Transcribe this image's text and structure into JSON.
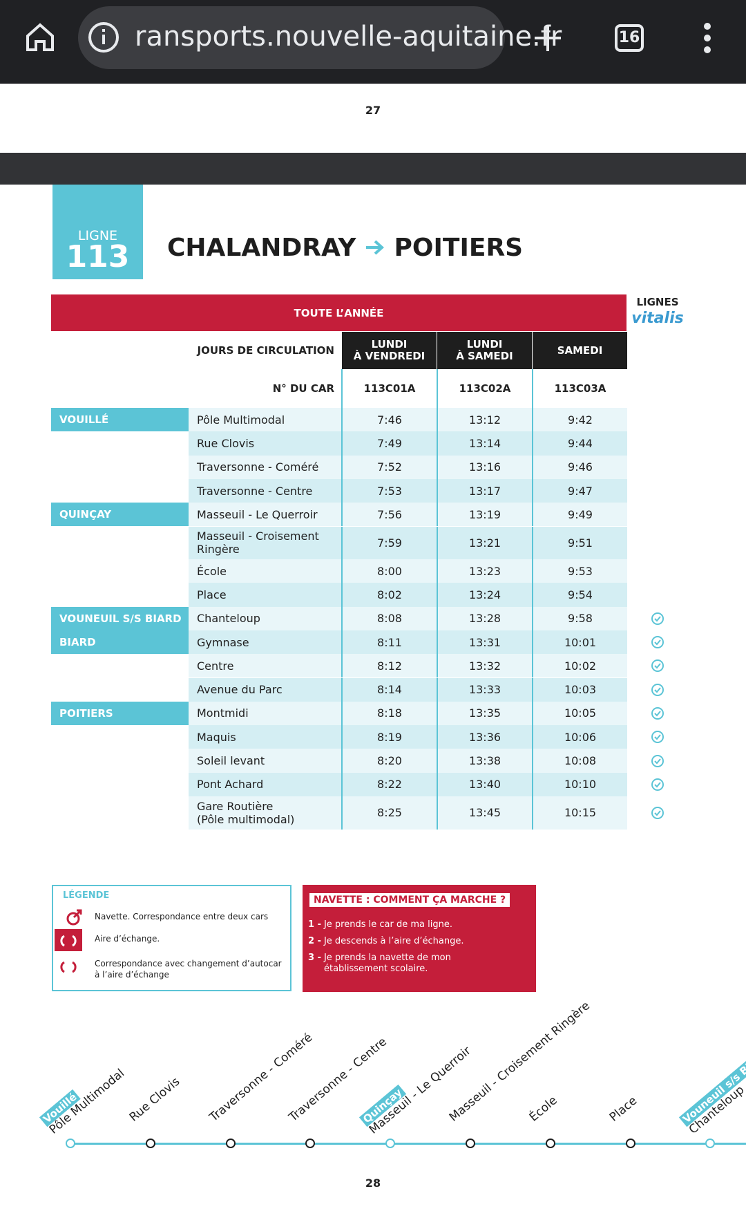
{
  "browser": {
    "url": "ransports.nouvelle-aquitaine.fr",
    "tab_count": "16"
  },
  "page_top": "27",
  "line": {
    "label": "LIGNE",
    "number": "113"
  },
  "title": {
    "from": "CHALANDRAY",
    "to": "POITIERS"
  },
  "brand": {
    "label": "LIGNES",
    "name": "vitalis"
  },
  "table": {
    "period": "TOUTE L’ANNÉE",
    "days_label": "JOURS DE CIRCULATION",
    "car_label": "N° DU CAR",
    "columns": [
      {
        "days": [
          "LUNDI",
          "À VENDREDI"
        ],
        "car": "113C01A"
      },
      {
        "days": [
          "LUNDI",
          "À SAMEDI"
        ],
        "car": "113C02A"
      },
      {
        "days": [
          "SAMEDI"
        ],
        "car": "113C03A"
      }
    ],
    "rows": [
      {
        "town": "VOUILLÉ",
        "stop": [
          "Pôle Multimodal"
        ],
        "times": [
          "7:46",
          "13:12",
          "9:42"
        ],
        "vitalis": false
      },
      {
        "stop": [
          "Rue Clovis"
        ],
        "times": [
          "7:49",
          "13:14",
          "9:44"
        ],
        "vitalis": false
      },
      {
        "stop": [
          "Traversonne - Coméré"
        ],
        "times": [
          "7:52",
          "13:16",
          "9:46"
        ],
        "vitalis": false
      },
      {
        "stop": [
          "Traversonne - Centre"
        ],
        "times": [
          "7:53",
          "13:17",
          "9:47"
        ],
        "vitalis": false
      },
      {
        "town": "QUINÇAY",
        "stop": [
          "Masseuil - Le Querroir"
        ],
        "times": [
          "7:56",
          "13:19",
          "9:49"
        ],
        "vitalis": false
      },
      {
        "stop": [
          "Masseuil - Croisement",
          "Ringère"
        ],
        "times": [
          "7:59",
          "13:21",
          "9:51"
        ],
        "vitalis": false
      },
      {
        "stop": [
          "École"
        ],
        "times": [
          "8:00",
          "13:23",
          "9:53"
        ],
        "vitalis": false
      },
      {
        "stop": [
          "Place"
        ],
        "times": [
          "8:02",
          "13:24",
          "9:54"
        ],
        "vitalis": false
      },
      {
        "town": "VOUNEUIL S/S BIARD",
        "stop": [
          "Chanteloup"
        ],
        "times": [
          "8:08",
          "13:28",
          "9:58"
        ],
        "vitalis": true
      },
      {
        "town": "BIARD",
        "stop": [
          "Gymnase"
        ],
        "times": [
          "8:11",
          "13:31",
          "10:01"
        ],
        "vitalis": true
      },
      {
        "stop": [
          "Centre"
        ],
        "times": [
          "8:12",
          "13:32",
          "10:02"
        ],
        "vitalis": true
      },
      {
        "stop": [
          "Avenue du Parc"
        ],
        "times": [
          "8:14",
          "13:33",
          "10:03"
        ],
        "vitalis": true
      },
      {
        "town": "POITIERS",
        "stop": [
          "Montmidi"
        ],
        "times": [
          "8:18",
          "13:35",
          "10:05"
        ],
        "vitalis": true
      },
      {
        "stop": [
          "Maquis"
        ],
        "times": [
          "8:19",
          "13:36",
          "10:06"
        ],
        "vitalis": true
      },
      {
        "stop": [
          "Soleil levant"
        ],
        "times": [
          "8:20",
          "13:38",
          "10:08"
        ],
        "vitalis": true
      },
      {
        "stop": [
          "Pont Achard"
        ],
        "times": [
          "8:22",
          "13:40",
          "10:10"
        ],
        "vitalis": true
      },
      {
        "stop": [
          "Gare Routière",
          "(Pôle multimodal)"
        ],
        "times": [
          "8:25",
          "13:45",
          "10:15"
        ],
        "vitalis": true
      }
    ]
  },
  "legend": {
    "title": "LÉGENDE",
    "items": [
      [
        "Navette. Correspondance entre deux cars"
      ],
      [
        "Aire d’échange."
      ],
      [
        "Correspondance avec changement d’autocar",
        "à l’aire d’échange"
      ]
    ]
  },
  "navette": {
    "title": "NAVETTE : COMMENT ÇA MARCHE ?",
    "steps": [
      {
        "num": "1 -",
        "text": [
          "Je prends le car de ma ligne."
        ]
      },
      {
        "num": "2 -",
        "text": [
          "Je descends à l’aire d’échange."
        ]
      },
      {
        "num": "3 -",
        "text": [
          "Je prends la navette de mon",
          "établissement scolaire."
        ]
      }
    ]
  },
  "map": {
    "stops": [
      {
        "town": "Vouillé",
        "name": "Pôle Multimodal"
      },
      {
        "name": "Rue Clovis"
      },
      {
        "name": "Traversonne - Coméré"
      },
      {
        "name": "Traversonne - Centre"
      },
      {
        "town": "Quinçay",
        "name": "Masseuil - Le Querroir"
      },
      {
        "name": "Masseuil - Croisement Ringère"
      },
      {
        "name": "École"
      },
      {
        "name": "Place"
      },
      {
        "town": "Vouneuil s/s Biard",
        "name": "Chanteloup"
      }
    ]
  },
  "page_bottom": "28"
}
